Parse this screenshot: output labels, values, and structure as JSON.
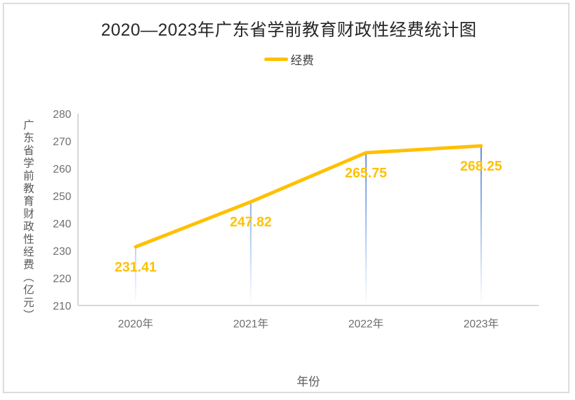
{
  "chart_data": {
    "type": "line",
    "title": "2020—2023年广东省学前教育财政性经费统计图",
    "xlabel": "年份",
    "ylabel": "广东省学前教育财政性经费（亿元）",
    "categories": [
      "2020年",
      "2021年",
      "2022年",
      "2023年"
    ],
    "series": [
      {
        "name": "经费",
        "values": [
          231.41,
          247.82,
          265.75,
          268.25
        ]
      }
    ],
    "data_labels": [
      "231.41",
      "247.82",
      "265.75",
      "268.25"
    ],
    "ylim": [
      210,
      280
    ],
    "ytick_step": 10,
    "yticks": [
      280,
      270,
      260,
      250,
      240,
      230,
      220,
      210
    ],
    "grid": false,
    "legend_position": "top",
    "drop_lines": true,
    "colors": {
      "series_line": "#FFC000",
      "data_label": "#FFC000",
      "drop_line_top": "#4472C4",
      "drop_line_mid": "#85A9E6",
      "drop_line_bottom": "#FFFFFF",
      "y_axis_line": "#C9C9C9",
      "x_axis_line": "#D9D9D9",
      "tick_label": "#6E6E6E",
      "axis_title": "#595959",
      "title_text": "#262626",
      "card_border": "#DCDCDC",
      "background": "#FFFFFF"
    }
  }
}
